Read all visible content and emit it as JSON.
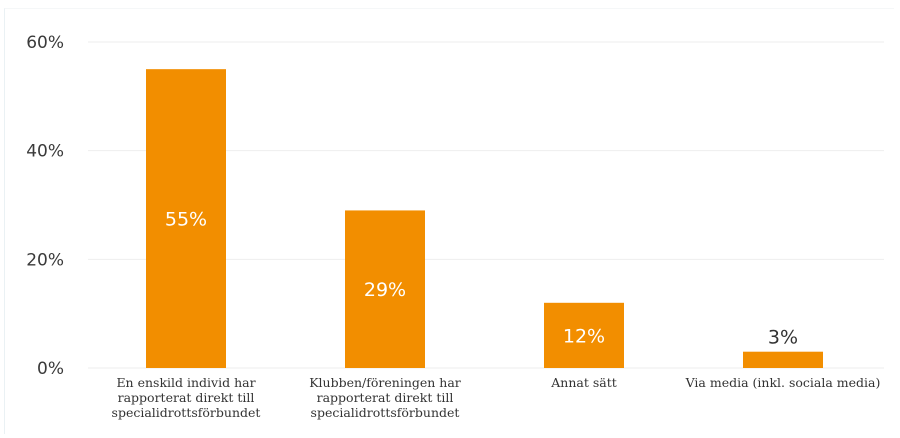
{
  "chart_data": {
    "type": "bar",
    "title": "",
    "xlabel": "",
    "ylabel": "",
    "ylim": [
      0,
      60
    ],
    "yticks": [
      0,
      20,
      40,
      60
    ],
    "ytick_labels": [
      "0%",
      "20%",
      "40%",
      "60%"
    ],
    "grid": true,
    "legend": "none",
    "categories": [
      [
        "En enskild individ har",
        "rapporterat direkt till",
        "specialidrottsförbundet"
      ],
      [
        "Klubben/föreningen har",
        "rapporterat direkt till",
        "specialidrottsförbundet"
      ],
      [
        "Annat sätt"
      ],
      [
        "Via media (inkl. sociala media)"
      ]
    ],
    "values": [
      55,
      29,
      12,
      3
    ],
    "data_labels": [
      "55%",
      "29%",
      "12%",
      "3%"
    ],
    "colors": {
      "bar": "#f28e00",
      "label_inside": "#ffffff",
      "label_outside": "#333333",
      "grid": "#eeeeee"
    }
  }
}
